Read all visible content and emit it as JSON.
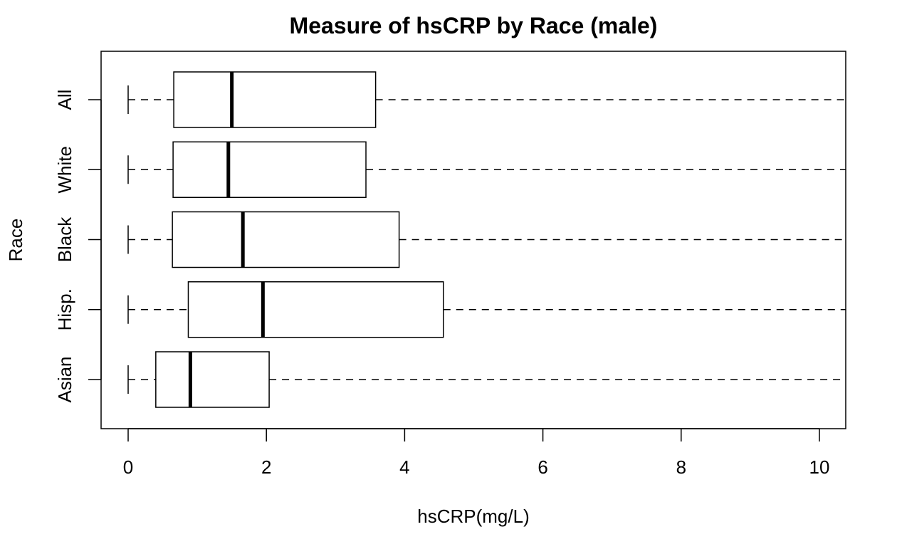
{
  "chart_data": {
    "type": "boxplot",
    "orientation": "horizontal",
    "title": "Measure of hsCRP by Race (male)",
    "xlabel": "hsCRP(mg/L)",
    "ylabel": "Race",
    "xlim": [
      0,
      10
    ],
    "xticks": [
      "0",
      "2",
      "4",
      "6",
      "8",
      "10"
    ],
    "grid": false,
    "categories": [
      "Asian",
      "Hisp.",
      "Black",
      "White",
      "All"
    ],
    "boxes": [
      {
        "name": "Asian",
        "min": 0,
        "q1": 0.4,
        "median": 0.9,
        "q3": 2.04,
        "max": 10.4
      },
      {
        "name": "Hisp.",
        "min": 0,
        "q1": 0.87,
        "median": 1.95,
        "q3": 4.56,
        "max": 10.4
      },
      {
        "name": "Black",
        "min": 0,
        "q1": 0.64,
        "median": 1.66,
        "q3": 3.92,
        "max": 10.4
      },
      {
        "name": "White",
        "min": 0,
        "q1": 0.65,
        "median": 1.45,
        "q3": 3.44,
        "max": 10.4
      },
      {
        "name": "All",
        "min": 0,
        "q1": 0.66,
        "median": 1.5,
        "q3": 3.58,
        "max": 10.4
      }
    ]
  }
}
